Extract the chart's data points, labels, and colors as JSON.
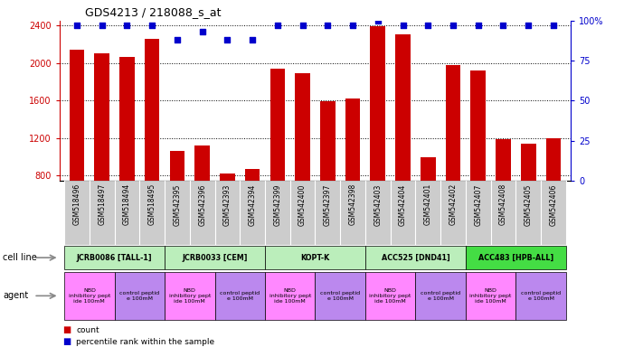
{
  "title": "GDS4213 / 218088_s_at",
  "gsm_labels": [
    "GSM518496",
    "GSM518497",
    "GSM518494",
    "GSM518495",
    "GSM542395",
    "GSM542396",
    "GSM542393",
    "GSM542394",
    "GSM542399",
    "GSM542400",
    "GSM542397",
    "GSM542398",
    "GSM542403",
    "GSM542404",
    "GSM542401",
    "GSM542402",
    "GSM542407",
    "GSM542408",
    "GSM542405",
    "GSM542406"
  ],
  "bar_values": [
    2140,
    2100,
    2070,
    2260,
    1060,
    1120,
    820,
    870,
    1940,
    1890,
    1590,
    1620,
    2390,
    2310,
    1000,
    1980,
    1920,
    1190,
    1140,
    1200
  ],
  "percentile_values": [
    97,
    97,
    97,
    97,
    88,
    93,
    88,
    88,
    97,
    97,
    97,
    97,
    100,
    97,
    97,
    97,
    97,
    97,
    97,
    97
  ],
  "cell_lines": [
    {
      "label": "JCRB0086 [TALL-1]",
      "start": 0,
      "end": 4,
      "color": "#BBEEBB"
    },
    {
      "label": "JCRB0033 [CEM]",
      "start": 4,
      "end": 8,
      "color": "#BBEEBB"
    },
    {
      "label": "KOPT-K",
      "start": 8,
      "end": 12,
      "color": "#BBEEBB"
    },
    {
      "label": "ACC525 [DND41]",
      "start": 12,
      "end": 16,
      "color": "#BBEEBB"
    },
    {
      "label": "ACC483 [HPB-ALL]",
      "start": 16,
      "end": 20,
      "color": "#44DD44"
    }
  ],
  "agents": [
    {
      "label": "NBD\ninhibitory pept\nide 100mM",
      "start": 0,
      "end": 2,
      "color": "#FF88FF"
    },
    {
      "label": "control peptid\ne 100mM",
      "start": 2,
      "end": 4,
      "color": "#BB88EE"
    },
    {
      "label": "NBD\ninhibitory pept\nide 100mM",
      "start": 4,
      "end": 6,
      "color": "#FF88FF"
    },
    {
      "label": "control peptid\ne 100mM",
      "start": 6,
      "end": 8,
      "color": "#BB88EE"
    },
    {
      "label": "NBD\ninhibitory pept\nide 100mM",
      "start": 8,
      "end": 10,
      "color": "#FF88FF"
    },
    {
      "label": "control peptid\ne 100mM",
      "start": 10,
      "end": 12,
      "color": "#BB88EE"
    },
    {
      "label": "NBD\ninhibitory pept\nide 100mM",
      "start": 12,
      "end": 14,
      "color": "#FF88FF"
    },
    {
      "label": "control peptid\ne 100mM",
      "start": 14,
      "end": 16,
      "color": "#BB88EE"
    },
    {
      "label": "NBD\ninhibitory pept\nide 100mM",
      "start": 16,
      "end": 18,
      "color": "#FF88FF"
    },
    {
      "label": "control peptid\ne 100mM",
      "start": 18,
      "end": 20,
      "color": "#BB88EE"
    }
  ],
  "ylim_left": [
    750,
    2450
  ],
  "ylim_right": [
    0,
    100
  ],
  "yticks_left": [
    800,
    1200,
    1600,
    2000,
    2400
  ],
  "yticks_right": [
    0,
    25,
    50,
    75,
    100
  ],
  "bar_color": "#CC0000",
  "percentile_color": "#0000CC",
  "tick_bg_color": "#CCCCCC",
  "grid_color": "#000000"
}
